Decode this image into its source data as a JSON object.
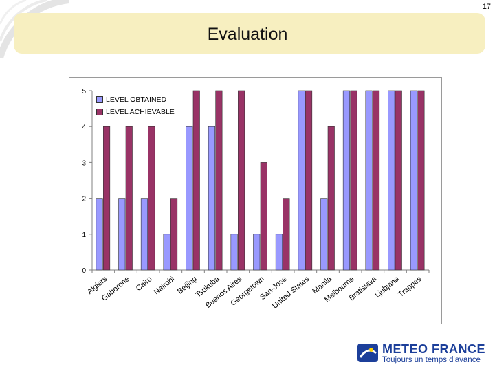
{
  "slide": {
    "number": "17",
    "title": "Evaluation"
  },
  "brand": {
    "name": "METEO FRANCE",
    "tagline": "Toujours un temps d'avance"
  },
  "colors": {
    "obtained": "#9999ff",
    "achievable": "#993366",
    "title_bar": "#f7efc0"
  },
  "chart_data": {
    "type": "bar",
    "categories": [
      "Algiers",
      "Gaborone",
      "Cairo",
      "Nairobi",
      "Beijing",
      "Tsukuba",
      "Buenos Aires",
      "Georgetown",
      "San-Jose",
      "United States",
      "Manila",
      "Melbourne",
      "Bratislava",
      "Ljubjana",
      "Trappes"
    ],
    "series": [
      {
        "name": "LEVEL OBTAINED",
        "values": [
          2,
          2,
          2,
          1,
          4,
          4,
          1,
          1,
          1,
          5,
          2,
          5,
          5,
          5,
          5
        ]
      },
      {
        "name": "LEVEL ACHIEVABLE",
        "values": [
          4,
          4,
          4,
          2,
          5,
          5,
          5,
          3,
          2,
          5,
          4,
          5,
          5,
          5,
          5
        ]
      }
    ],
    "ylim": [
      0,
      5
    ],
    "yticks": [
      "0",
      "1",
      "2",
      "3",
      "4",
      "5"
    ],
    "legend": "top-left",
    "grid": false
  }
}
